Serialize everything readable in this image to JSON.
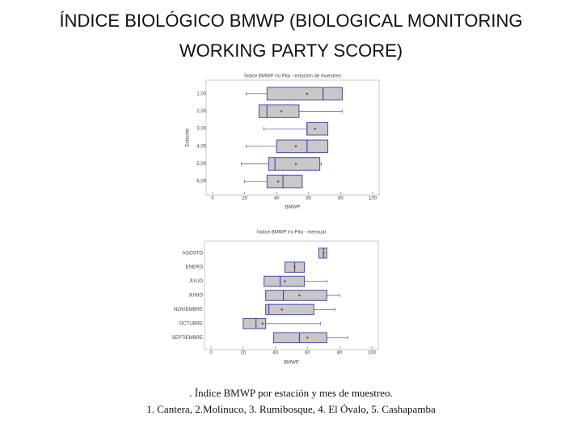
{
  "title_lines": [
    "ÍNDICE BIOLÓGICO BMWP (BIOLOGICAL MONITORING",
    "WORKING PARTY SCORE)"
  ],
  "chart_data": [
    {
      "type": "box",
      "title": "Índice BMWP río Pita - estación de muestreo",
      "x_label": "BMWP",
      "y_label": "Estación",
      "categories": [
        "1,00",
        "2,00",
        "3,00",
        "4,00",
        "5,00",
        "6,00"
      ],
      "stats": {
        "min": [
          21,
          29,
          32,
          21,
          18,
          20
        ],
        "q1": [
          34,
          29,
          59,
          40,
          35,
          34
        ],
        "median": [
          69,
          34,
          59,
          59,
          39,
          44
        ],
        "q3": [
          81,
          54,
          72,
          72,
          67,
          56
        ],
        "max": [
          81,
          81,
          72,
          72,
          68,
          56
        ],
        "mean": [
          59,
          43,
          64,
          52,
          52,
          41
        ]
      },
      "xlim": [
        0,
        100
      ],
      "xticks": [
        0,
        20,
        40,
        60,
        80,
        100
      ],
      "box_color": "#c8c8c8",
      "edge_color": "#4a4aa8",
      "mean_color": "#d03030"
    },
    {
      "type": "box",
      "title": "Índice BMWP río Pita - mensual",
      "x_label": "BMWP",
      "categories": [
        "AGOSTO",
        "ENERO",
        "JULIO",
        "JUNIO",
        "NOVIEMBRE",
        "OCTUBRE",
        "SEPTIEMBRE"
      ],
      "stats": {
        "min": [
          67,
          46,
          33,
          34,
          34,
          20,
          39
        ],
        "q1": [
          67,
          46,
          33,
          34,
          34,
          20,
          39
        ],
        "median": [
          70,
          52,
          43,
          45,
          36,
          28,
          55
        ],
        "q3": [
          72,
          58,
          58,
          72,
          64,
          34,
          72
        ],
        "max": [
          72,
          58,
          72,
          80,
          77,
          68,
          85
        ],
        "mean": [
          70,
          52,
          46,
          55,
          44,
          32,
          60
        ]
      },
      "xlim": [
        0,
        100
      ],
      "xticks": [
        0,
        20,
        40,
        60,
        80,
        100
      ],
      "box_color": "#c8c8c8",
      "edge_color": "#4a4aa8",
      "mean_color": "#d03030"
    }
  ],
  "caption_lines": [
    ". Índice BMWP por estación y mes de muestreo.",
    "1. Cantera, 2.Molinuco, 3. Rumibosque, 4. El Óvalo, 5. Cashapamba"
  ]
}
